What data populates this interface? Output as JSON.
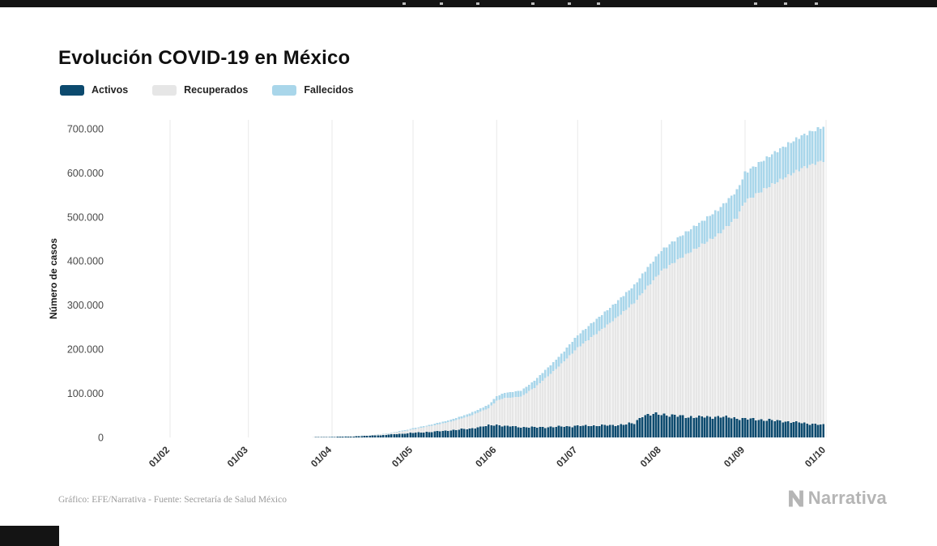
{
  "header": {
    "title": "Evolución COVID-19 en México"
  },
  "footer": {
    "credit": "Gráfico: EFE/Narrativa - Fuente: Secretaría de Salud México",
    "brand_text": "Narrativa",
    "brand_icon": "narrativa-n-logo",
    "brand_color": "#b5b5b5"
  },
  "chart_data": {
    "type": "area",
    "stacked": true,
    "title": "Evolución COVID-19 en México",
    "xlabel": "",
    "ylabel": "Número de casos",
    "legend_position": "top-left",
    "grid": "vertical-only",
    "ylim": [
      0,
      720000
    ],
    "x_domain": [
      0,
      243
    ],
    "x_unit": "days since 01/02/2020",
    "x_ticks": [
      {
        "day": 0,
        "label": "01/02"
      },
      {
        "day": 29,
        "label": "01/03"
      },
      {
        "day": 60,
        "label": "01/04"
      },
      {
        "day": 90,
        "label": "01/05"
      },
      {
        "day": 121,
        "label": "01/06"
      },
      {
        "day": 151,
        "label": "01/07"
      },
      {
        "day": 182,
        "label": "01/08"
      },
      {
        "day": 213,
        "label": "01/09"
      },
      {
        "day": 243,
        "label": "01/10"
      }
    ],
    "y_ticks": [
      {
        "value": 0,
        "label": "0"
      },
      {
        "value": 100000,
        "label": "100.000"
      },
      {
        "value": 200000,
        "label": "200.000"
      },
      {
        "value": 300000,
        "label": "300.000"
      },
      {
        "value": 400000,
        "label": "400.000"
      },
      {
        "value": 500000,
        "label": "500.000"
      },
      {
        "value": 600000,
        "label": "600.000"
      },
      {
        "value": 700000,
        "label": "700.000"
      }
    ],
    "x_days": [
      0,
      29,
      43,
      50,
      57,
      60,
      67,
      74,
      81,
      88,
      90,
      97,
      104,
      111,
      118,
      121,
      124,
      130,
      135,
      142,
      146,
      151,
      158,
      165,
      172,
      175,
      182,
      189,
      196,
      203,
      210,
      213,
      220,
      227,
      234,
      242
    ],
    "series": [
      {
        "name": "Activos",
        "color": "#0c4a6e",
        "values": [
          0,
          5,
          55,
          220,
          700,
          1100,
          2100,
          3800,
          6200,
          9500,
          10500,
          13000,
          16000,
          20000,
          27000,
          29000,
          26000,
          23500,
          23000,
          24000,
          25000,
          26000,
          27000,
          28000,
          32000,
          50000,
          53000,
          48000,
          46000,
          47000,
          44000,
          42000,
          40000,
          37000,
          33000,
          28000
        ]
      },
      {
        "name": "Recuperados",
        "color": "#e6e6e6",
        "values": [
          0,
          0,
          5,
          28,
          134,
          260,
          550,
          1200,
          2400,
          6600,
          8200,
          13600,
          20000,
          28600,
          39400,
          54200,
          63500,
          69000,
          90000,
          126000,
          148000,
          177500,
          209000,
          241500,
          273500,
          278500,
          324300,
          358300,
          387000,
          413000,
          455200,
          493600,
          522400,
          550200,
          577300,
          600000
        ]
      },
      {
        "name": "Fallecidos",
        "color": "#a9d6ea",
        "values": [
          0,
          0,
          0,
          2,
          16,
          40,
          150,
          400,
          900,
          1700,
          2000,
          3000,
          4200,
          5700,
          8100,
          10200,
          11500,
          13500,
          16000,
          20000,
          23000,
          28500,
          32000,
          35500,
          39500,
          41500,
          46700,
          49700,
          53000,
          56000,
          60800,
          64400,
          67600,
          70800,
          73700,
          77000
        ]
      }
    ]
  }
}
